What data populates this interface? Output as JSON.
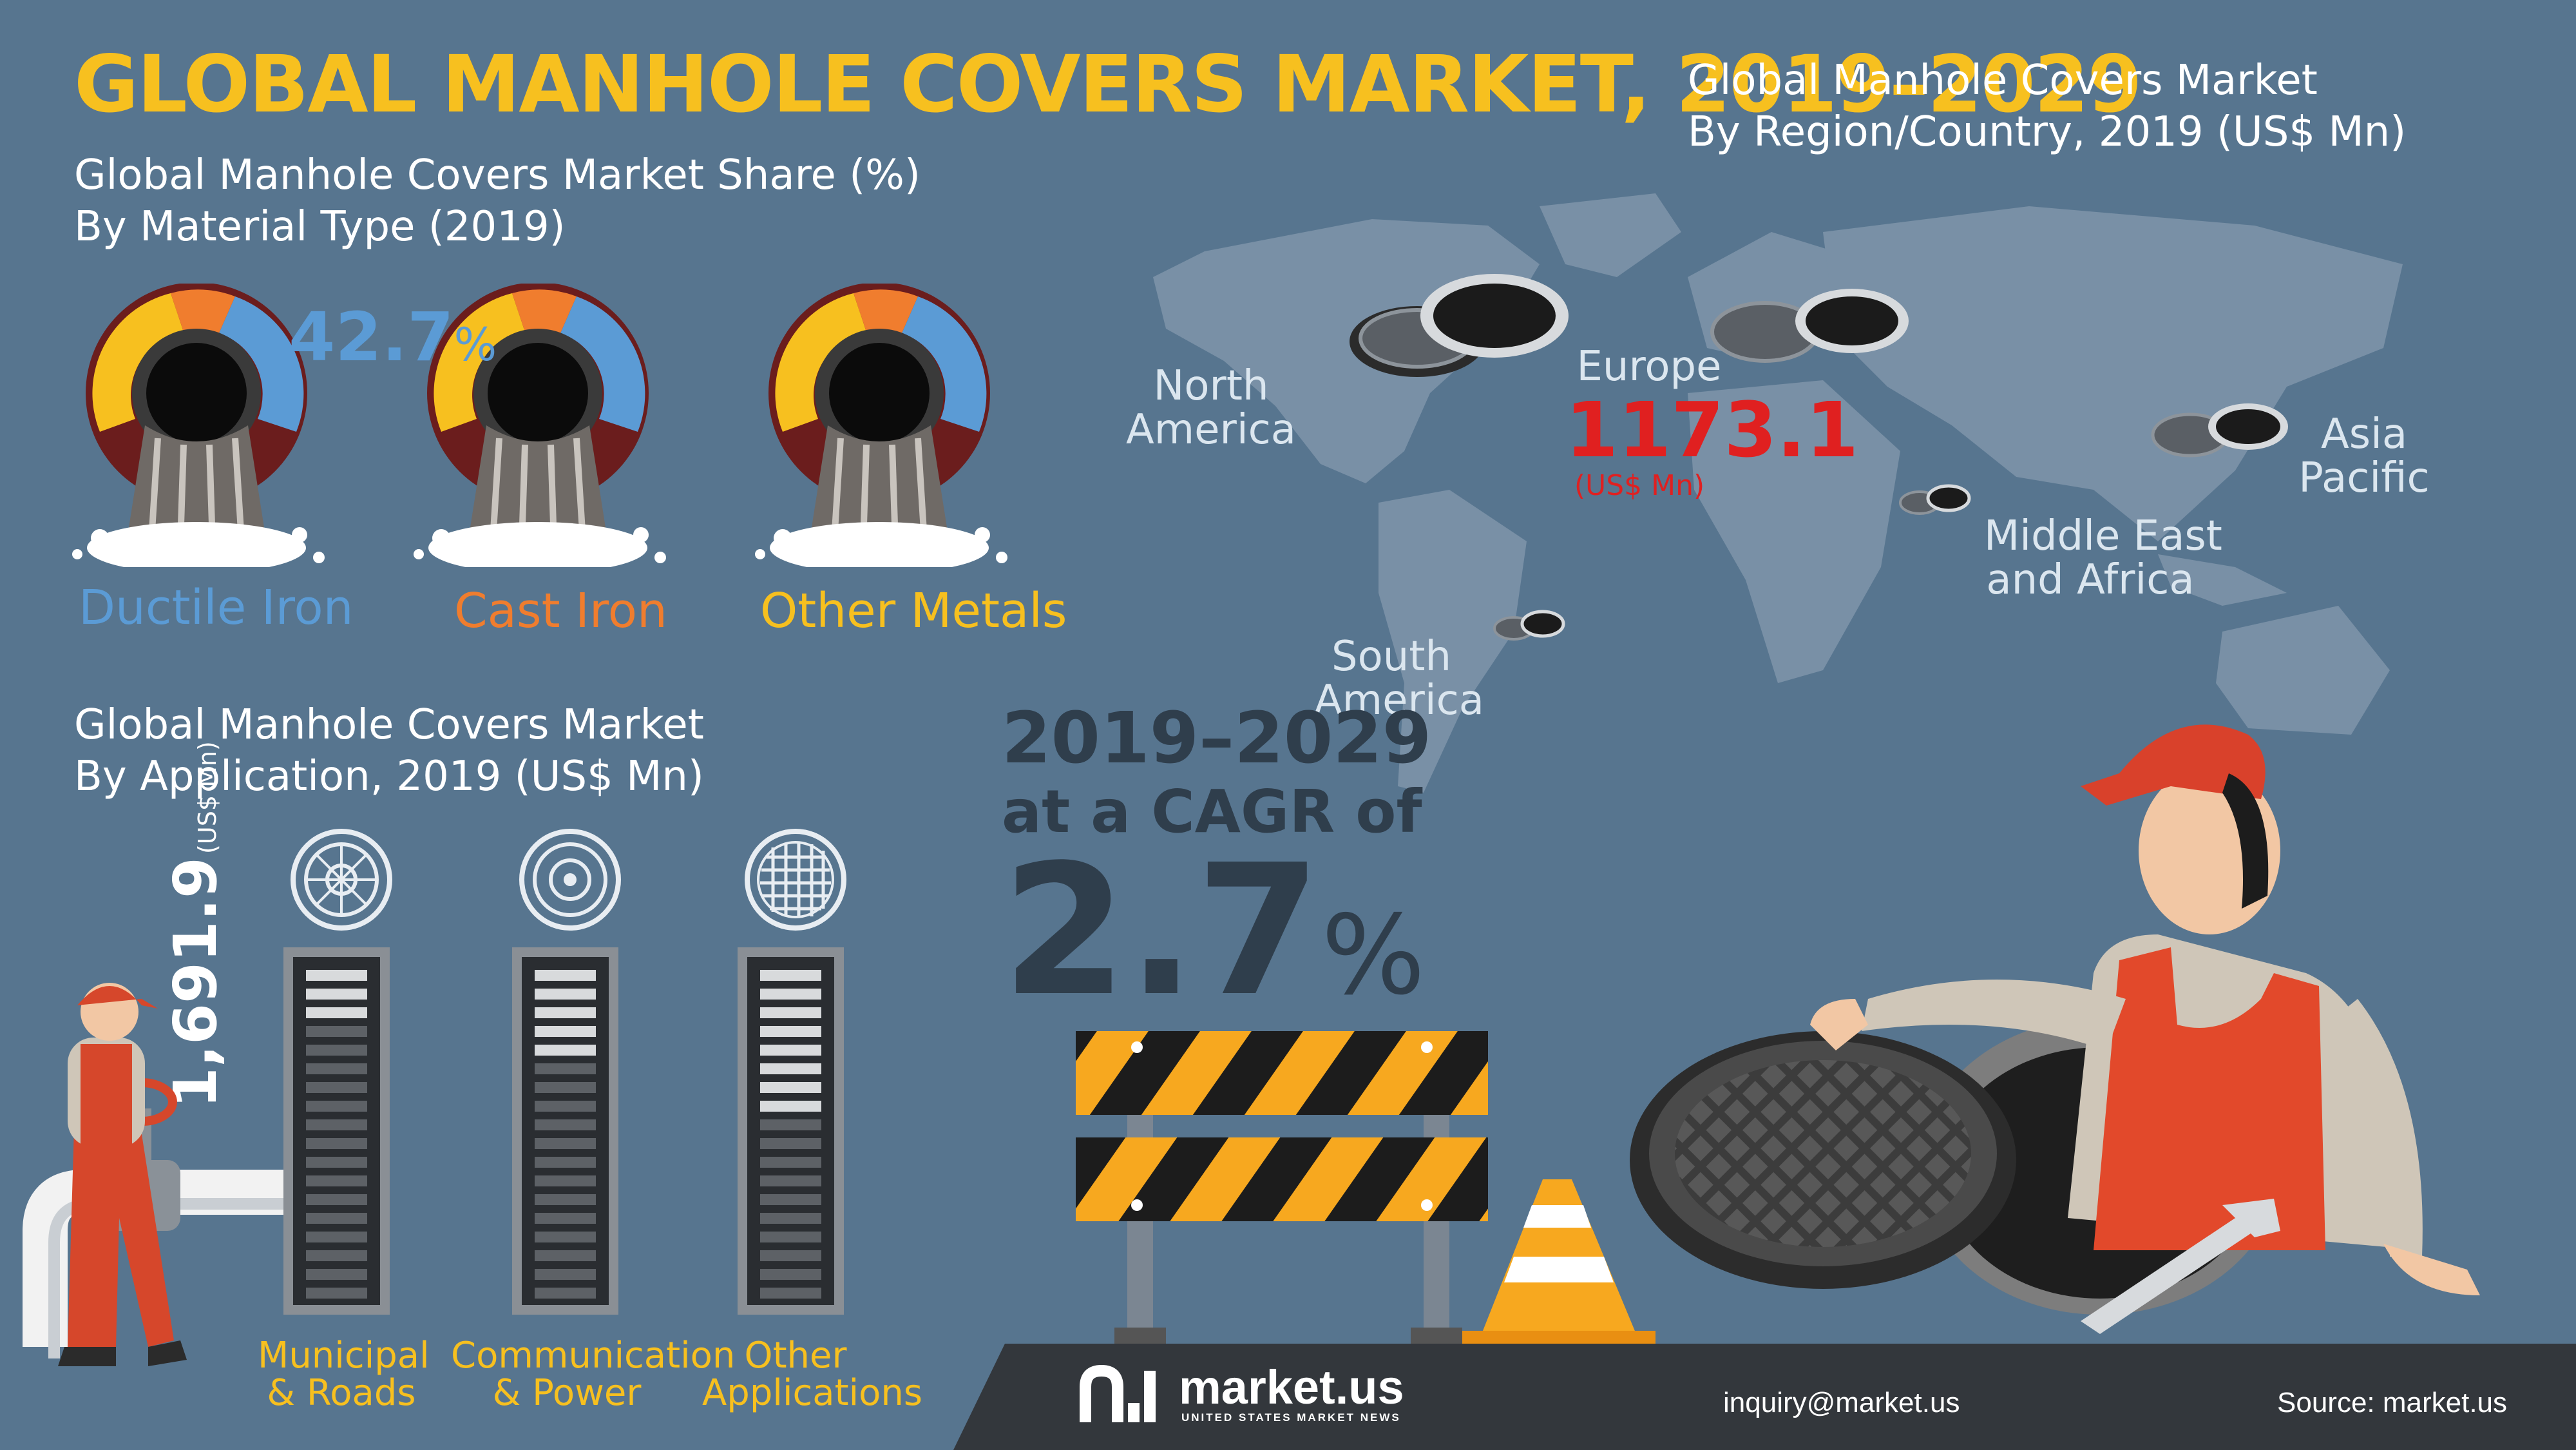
{
  "title": "GLOBAL MANHOLE COVERS MARKET, 2019–2029",
  "material_section": {
    "title_line1": "Global Manhole Covers Market Share (%)",
    "title_line2": "By Material Type (2019)",
    "items": [
      {
        "label": "Ductile Iron",
        "share": 42.7,
        "color": "#5b9bd5"
      },
      {
        "label": "Cast Iron",
        "color": "#f07d2e"
      },
      {
        "label": "Other Metals",
        "color": "#f7c01f"
      }
    ],
    "value_number": "42.7",
    "value_unit": "%"
  },
  "application_section": {
    "title_line1": "Global Manhole Covers Market",
    "title_line2": "By Application, 2019 (US$ Mn)",
    "value": "1,691.9",
    "value_unit": "(US$ Mn)",
    "items": [
      {
        "line1": "Municipal",
        "line2": "& Roads"
      },
      {
        "line1": "Communication",
        "line2": "& Power"
      },
      {
        "line1": "Other",
        "line2": "Applications"
      }
    ]
  },
  "region_section": {
    "title_line1": "Global Manhole Covers Market",
    "title_line2": "By Region/Country, 2019 (US$ Mn)",
    "regions": {
      "north_america": [
        "North",
        "America"
      ],
      "europe": "Europe",
      "asia_pacific": [
        "Asia",
        "Pacific"
      ],
      "middle_east_africa": [
        "Middle East",
        "and Africa"
      ],
      "south_america": [
        "South",
        "America"
      ]
    },
    "europe_value": "1173.1",
    "europe_unit": "(US$ Mn)"
  },
  "cagr": {
    "line1": "2019–2029",
    "line2": "at a CAGR of",
    "value": "2.7",
    "unit": "%"
  },
  "footer": {
    "brand": "market.us",
    "tagline": "UNITED STATES MARKET NEWS",
    "email": "inquiry@market.us",
    "source": "Source: market.us"
  },
  "colors": {
    "background": "#57758f",
    "title_yellow": "#f7c01f",
    "ductile_blue": "#5b9bd5",
    "cast_orange": "#f07d2e",
    "europe_red": "#e02020",
    "cagr_dark": "#2f3e4c",
    "footer_dark": "#33373c"
  }
}
